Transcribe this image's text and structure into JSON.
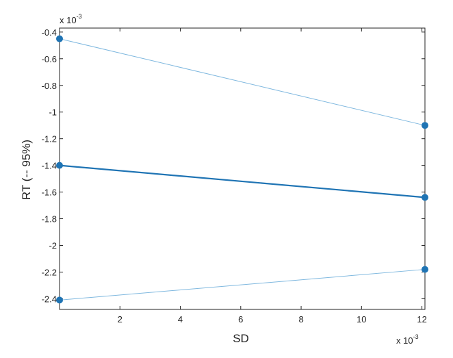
{
  "chart_data": {
    "type": "line",
    "xlabel": "SD",
    "ylabel": "RT (-- 95%)",
    "x_multiplier": "x 10",
    "x_multiplier_exp": "-3",
    "y_multiplier": "x 10",
    "y_multiplier_exp": "-3",
    "xlim": [
      0,
      12.1
    ],
    "ylim": [
      -2.48,
      -0.37
    ],
    "xticks": [
      2,
      4,
      6,
      8,
      10,
      12
    ],
    "xtick_labels": [
      "2",
      "4",
      "6",
      "8",
      "10",
      "12"
    ],
    "yticks": [
      -0.4,
      -0.6,
      -0.8,
      -1,
      -1.2,
      -1.4,
      -1.6,
      -1.8,
      -2,
      -2.2,
      -2.4
    ],
    "ytick_labels": [
      "-0.4",
      "-0.6",
      "-0.8",
      "-1",
      "-1.2",
      "-1.4",
      "-1.6",
      "-1.8",
      "-2",
      "-2.2",
      "-2.4"
    ],
    "grid": false,
    "series": [
      {
        "role": "upper-bound",
        "x": [
          0,
          12.1
        ],
        "y": [
          -0.45,
          -1.1
        ],
        "color": "#7fb8df",
        "width": 1
      },
      {
        "role": "estimate",
        "x": [
          0,
          12.1
        ],
        "y": [
          -1.4,
          -1.64
        ],
        "color": "#1f74b4",
        "width": 2.2
      },
      {
        "role": "lower-bound",
        "x": [
          0,
          12.1
        ],
        "y": [
          -2.41,
          -2.18
        ],
        "color": "#7fb8df",
        "width": 1
      }
    ],
    "marker_color": "#1f74b4"
  }
}
